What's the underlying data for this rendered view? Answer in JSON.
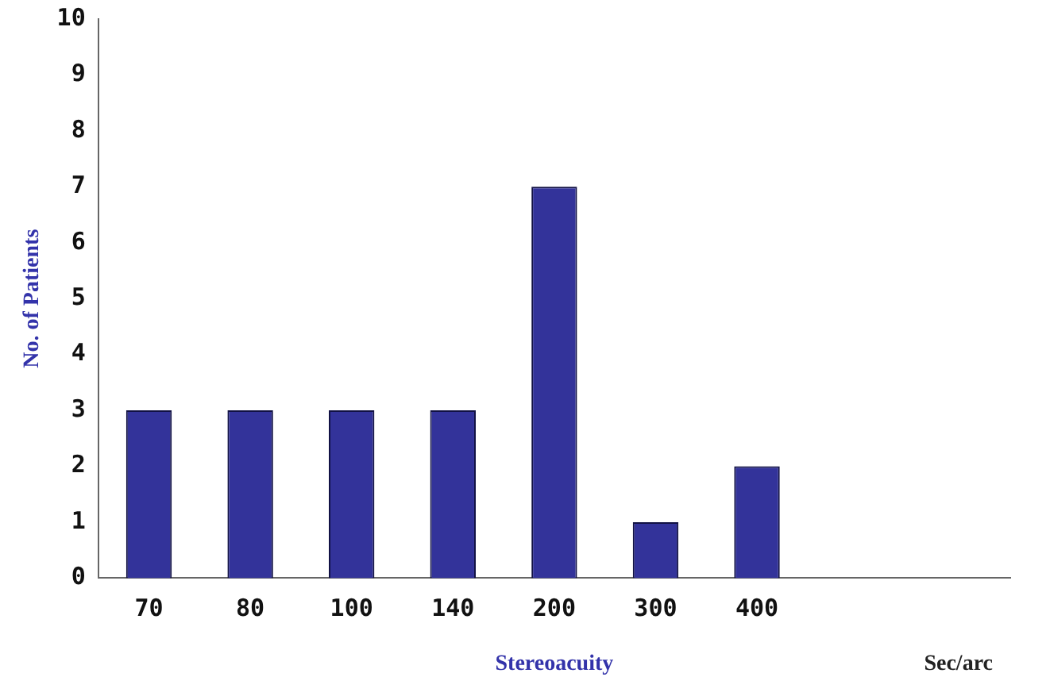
{
  "chart_data": {
    "type": "bar",
    "xlabel": "Stereoacuity",
    "ylabel": "No. of Patients",
    "categories": [
      "70",
      "80",
      "100",
      "140",
      "200",
      "300",
      "400",
      null,
      null
    ],
    "values": [
      3,
      3,
      3,
      3,
      7,
      1,
      2,
      null,
      null
    ],
    "color": "#33339a",
    "ylim": [
      0,
      10
    ],
    "yticks": [
      0,
      1,
      2,
      3,
      4,
      5,
      6,
      7,
      8,
      9,
      10
    ],
    "grid": false,
    "legend": false,
    "annotations": [
      "Sec/arc"
    ]
  }
}
